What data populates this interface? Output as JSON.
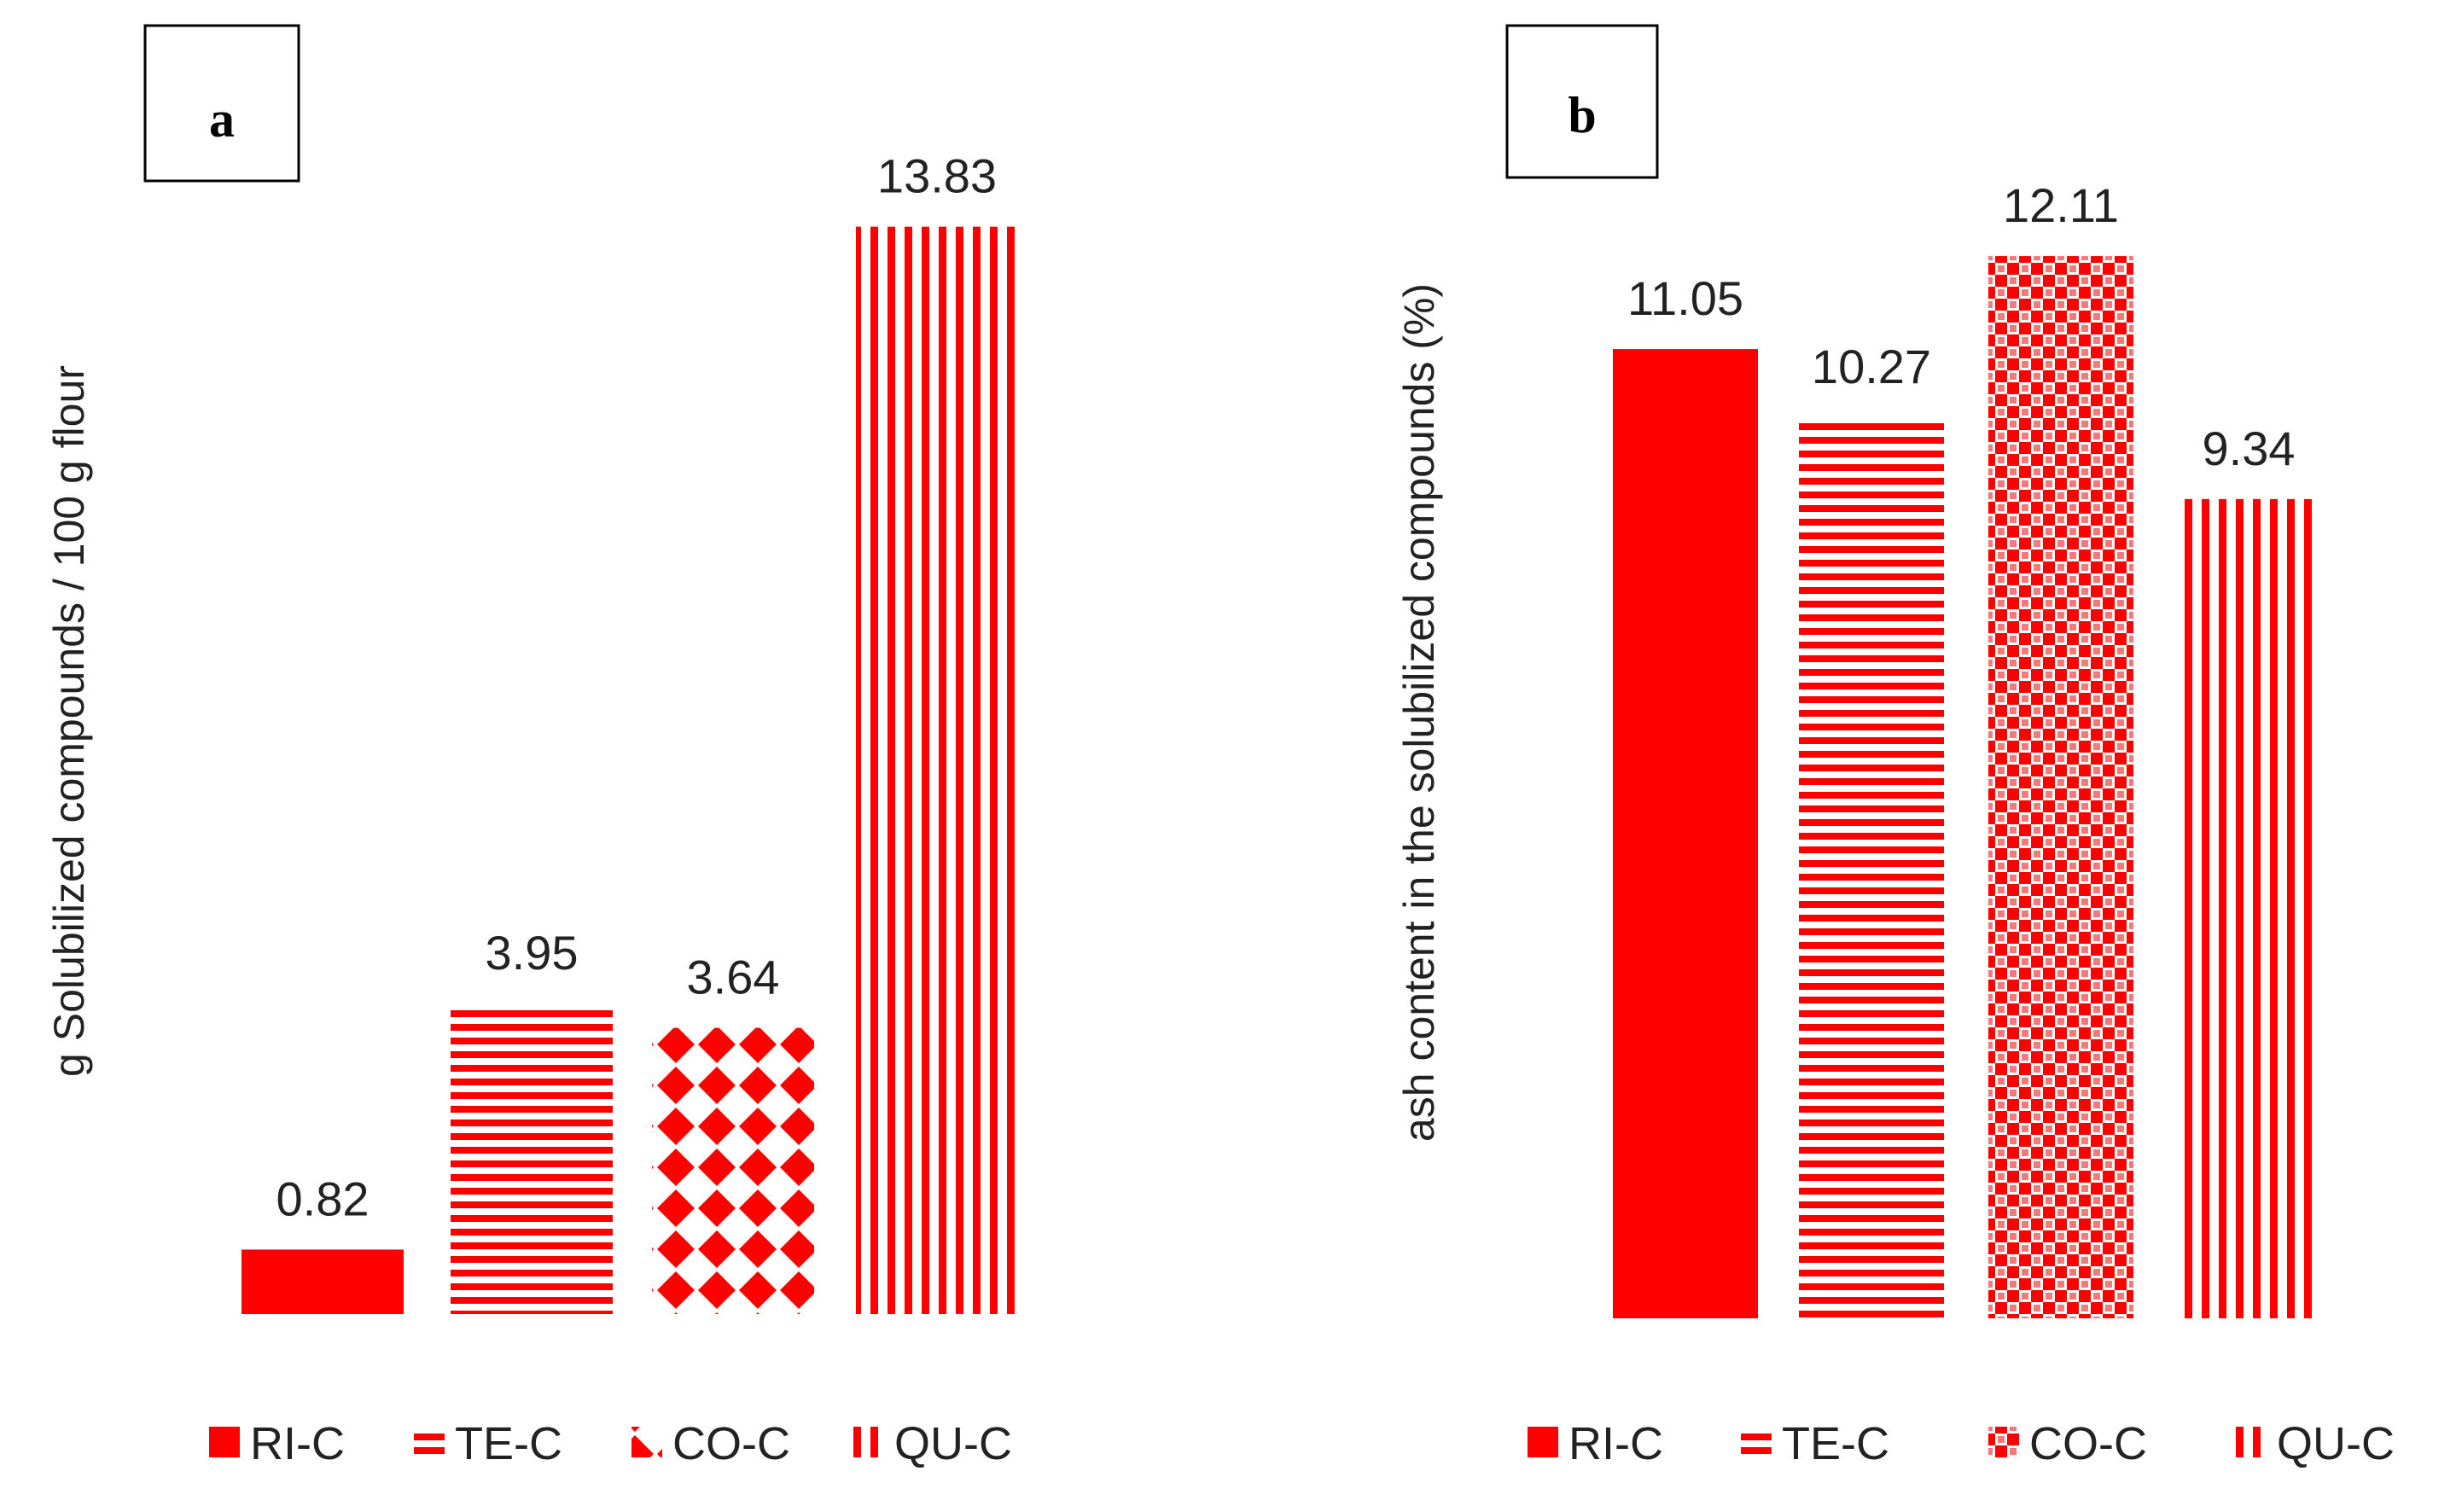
{
  "colors": {
    "primary": "#ff0000",
    "background": "#ffffff",
    "text": "#222222",
    "box_border": "#000000"
  },
  "chart_data": [
    {
      "panel_label": "a",
      "type": "bar",
      "ylabel": "g Solubilized compounds / 100 g flour",
      "xlabel": "",
      "categories": [
        "RI-C",
        "TE-C",
        "CO-C",
        "QU-C"
      ],
      "values": [
        0.82,
        3.95,
        3.64,
        13.83
      ],
      "data_labels": [
        "0.82",
        "3.95",
        "3.64",
        "13.83"
      ],
      "fill_patterns": [
        "solid",
        "horizontal-stripes",
        "diamonds",
        "vertical-stripes"
      ],
      "legend": {
        "position": "bottom",
        "entries": [
          "RI-C",
          "TE-C",
          "CO-C",
          "QU-C"
        ]
      },
      "ylim": [
        0,
        14
      ],
      "grid": false,
      "axes_visible": false
    },
    {
      "panel_label": "b",
      "type": "bar",
      "ylabel": "ash content in the solubilized compounds (%)",
      "xlabel": "",
      "categories": [
        "RI-C",
        "TE-C",
        "CO-C",
        "QU-C"
      ],
      "values": [
        11.05,
        10.27,
        12.11,
        9.34
      ],
      "data_labels": [
        "11.05",
        "10.27",
        "12.11",
        "9.34"
      ],
      "fill_patterns": [
        "solid",
        "horizontal-stripes",
        "checkerboard",
        "vertical-stripes"
      ],
      "legend": {
        "position": "bottom",
        "entries": [
          "RI-C",
          "TE-C",
          "CO-C",
          "QU-C"
        ]
      },
      "ylim": [
        0,
        12.5
      ],
      "grid": false,
      "axes_visible": false
    }
  ]
}
